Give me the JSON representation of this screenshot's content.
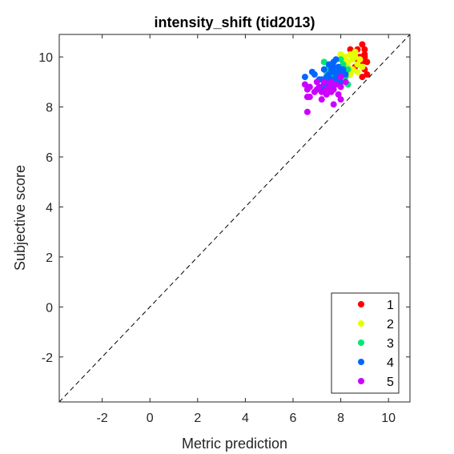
{
  "chart_data": {
    "type": "scatter",
    "title": "intensity_shift (tid2013)",
    "xlabel": "Metric prediction",
    "ylabel": "Subjective score",
    "xlim": [
      -3.8,
      10.9
    ],
    "ylim": [
      -3.8,
      10.9
    ],
    "xticks": [
      -2,
      0,
      2,
      4,
      6,
      8,
      10
    ],
    "yticks": [
      -2,
      0,
      2,
      4,
      6,
      8,
      10
    ],
    "xtick_labels": [
      "-2",
      "0",
      "2",
      "4",
      "6",
      "8",
      "10"
    ],
    "ytick_labels": [
      "-2",
      "0",
      "2",
      "4",
      "6",
      "8",
      "10"
    ],
    "reference_line": "y = x (dashed)",
    "grid": false,
    "legend_position": "bottom-right",
    "series": [
      {
        "name": "1",
        "color": "#ff0000",
        "points": [
          [
            8.4,
            10.3
          ],
          [
            8.5,
            10.1
          ],
          [
            8.7,
            10.3
          ],
          [
            8.9,
            10.5
          ],
          [
            9.0,
            10.3
          ],
          [
            8.8,
            10.0
          ],
          [
            9.0,
            10.0
          ],
          [
            9.1,
            9.8
          ],
          [
            9.0,
            9.5
          ],
          [
            9.1,
            9.3
          ],
          [
            8.9,
            9.2
          ],
          [
            8.9,
            9.8
          ],
          [
            8.6,
            9.6
          ],
          [
            8.7,
            9.9
          ],
          [
            9.0,
            10.1
          ]
        ]
      },
      {
        "name": "2",
        "color": "#e6ff00",
        "points": [
          [
            8.0,
            10.1
          ],
          [
            8.2,
            10.0
          ],
          [
            8.3,
            9.8
          ],
          [
            8.4,
            10.1
          ],
          [
            8.5,
            9.9
          ],
          [
            8.6,
            10.2
          ],
          [
            8.7,
            9.7
          ],
          [
            8.8,
            9.9
          ],
          [
            8.3,
            9.6
          ],
          [
            8.5,
            9.5
          ],
          [
            8.7,
            9.4
          ],
          [
            8.1,
            9.8
          ],
          [
            8.4,
            9.3
          ],
          [
            8.9,
            9.6
          ],
          [
            8.6,
            10.0
          ]
        ]
      },
      {
        "name": "3",
        "color": "#00e676",
        "points": [
          [
            7.3,
            9.8
          ],
          [
            7.6,
            9.7
          ],
          [
            7.8,
            9.5
          ],
          [
            8.0,
            9.9
          ],
          [
            8.1,
            9.6
          ],
          [
            8.3,
            9.5
          ],
          [
            7.6,
            9.2
          ],
          [
            7.4,
            9.4
          ],
          [
            8.0,
            9.3
          ],
          [
            8.2,
            9.2
          ],
          [
            7.7,
            9.0
          ],
          [
            8.3,
            8.9
          ],
          [
            8.1,
            9.7
          ],
          [
            7.9,
            9.0
          ],
          [
            7.5,
            9.6
          ]
        ]
      },
      {
        "name": "4",
        "color": "#0066ff",
        "points": [
          [
            6.5,
            9.2
          ],
          [
            6.8,
            9.4
          ],
          [
            6.9,
            9.3
          ],
          [
            7.2,
            9.1
          ],
          [
            7.3,
            9.5
          ],
          [
            7.4,
            9.0
          ],
          [
            7.5,
            9.7
          ],
          [
            7.7,
            9.8
          ],
          [
            7.7,
            9.4
          ],
          [
            7.8,
            9.1
          ],
          [
            7.9,
            9.6
          ],
          [
            8.0,
            9.3
          ],
          [
            7.9,
            8.9
          ],
          [
            7.3,
            8.9
          ],
          [
            7.6,
            9.5
          ],
          [
            7.8,
            9.9
          ],
          [
            7.5,
            9.3
          ],
          [
            8.2,
            9.3
          ],
          [
            7.1,
            9.1
          ],
          [
            7.2,
            8.8
          ],
          [
            7.6,
            8.8
          ],
          [
            7.7,
            9.6
          ],
          [
            8.0,
            9.0
          ],
          [
            7.4,
            9.2
          ],
          [
            7.8,
            9.2
          ],
          [
            8.1,
            9.5
          ],
          [
            7.6,
            9.1
          ],
          [
            7.9,
            9.4
          ],
          [
            7.5,
            8.9
          ],
          [
            7.7,
            9.0
          ]
        ]
      },
      {
        "name": "5",
        "color": "#cc00ff",
        "points": [
          [
            6.5,
            8.9
          ],
          [
            6.6,
            8.7
          ],
          [
            6.7,
            8.4
          ],
          [
            6.9,
            8.6
          ],
          [
            7.0,
            9.0
          ],
          [
            7.1,
            8.8
          ],
          [
            7.2,
            8.3
          ],
          [
            7.2,
            8.6
          ],
          [
            7.3,
            9.0
          ],
          [
            7.4,
            8.7
          ],
          [
            7.4,
            8.5
          ],
          [
            7.5,
            8.8
          ],
          [
            7.6,
            8.6
          ],
          [
            7.6,
            9.0
          ],
          [
            7.7,
            8.7
          ],
          [
            7.8,
            8.9
          ],
          [
            7.9,
            8.5
          ],
          [
            8.0,
            8.8
          ],
          [
            8.0,
            9.2
          ],
          [
            8.2,
            9.0
          ],
          [
            6.6,
            8.4
          ],
          [
            6.6,
            7.8
          ],
          [
            7.7,
            8.1
          ],
          [
            8.0,
            8.3
          ],
          [
            6.7,
            8.8
          ],
          [
            7.0,
            8.7
          ]
        ]
      }
    ]
  }
}
